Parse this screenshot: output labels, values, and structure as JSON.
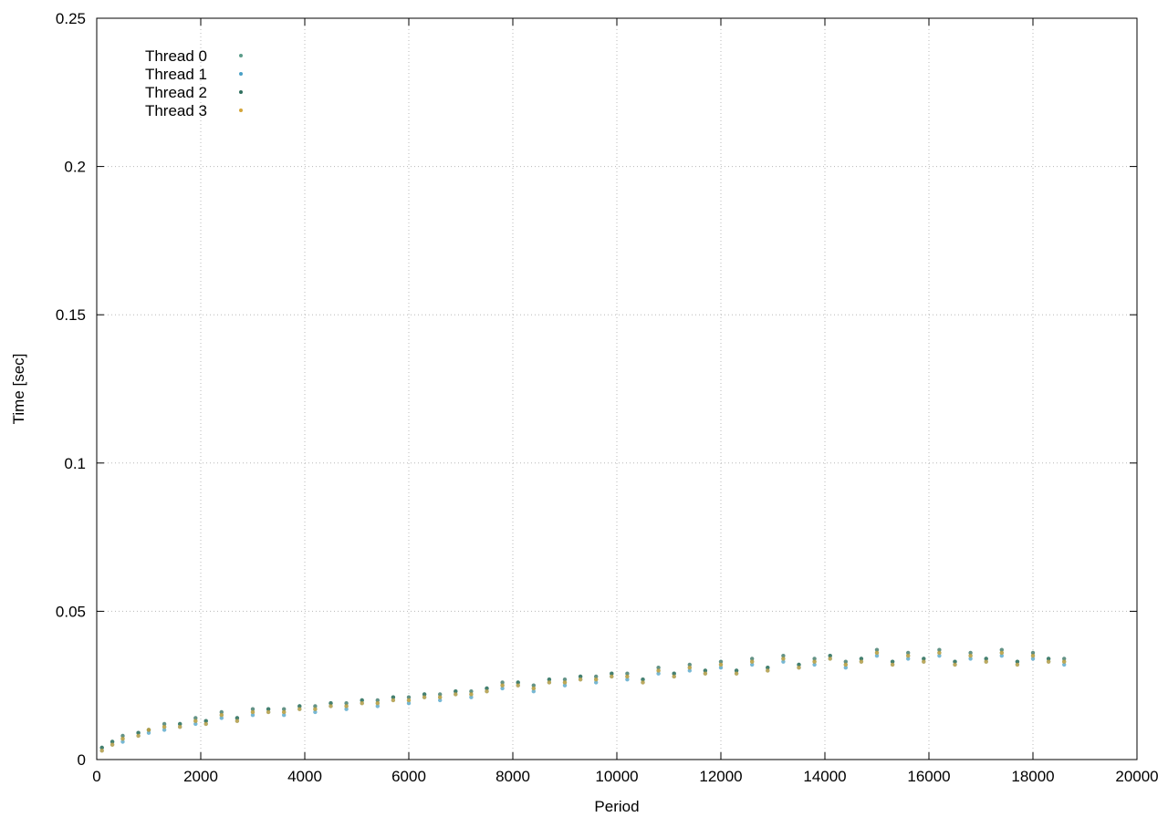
{
  "chart_data": {
    "type": "scatter",
    "title": "",
    "xlabel": "Period",
    "ylabel": "Time [sec]",
    "xlim": [
      0,
      20000
    ],
    "ylim": [
      0,
      0.25
    ],
    "xticks": [
      0,
      2000,
      4000,
      6000,
      8000,
      10000,
      12000,
      14000,
      16000,
      18000,
      20000
    ],
    "yticks": [
      0,
      0.05,
      0.1,
      0.15,
      0.2,
      0.25
    ],
    "xtick_labels": [
      "0",
      "2000",
      "4000",
      "6000",
      "8000",
      "10000",
      "12000",
      "14000",
      "16000",
      "18000",
      "20000"
    ],
    "ytick_labels": [
      "0",
      "0.05",
      "0.1",
      "0.15",
      "0.2",
      "0.25"
    ],
    "grid": true,
    "legend_position": "top-left",
    "series": [
      {
        "name": "Thread 0",
        "color": "#5b9c8a",
        "x": [
          100,
          300,
          500,
          800,
          1000,
          1300,
          1600,
          1900,
          2100,
          2400,
          2700,
          3000,
          3300,
          3600,
          3900,
          4200,
          4500,
          4800,
          5100,
          5400,
          5700,
          6000,
          6300,
          6600,
          6900,
          7200,
          7500,
          7800,
          8100,
          8400,
          8700,
          9000,
          9300,
          9600,
          9900,
          10200,
          10500,
          10800,
          11100,
          11400,
          11700,
          12000,
          12300,
          12600,
          12900,
          13200,
          13500,
          13800,
          14100,
          14400,
          14700,
          15000,
          15300,
          15600,
          15900,
          16200,
          16500,
          16800,
          17100,
          17400,
          17700,
          18000,
          18300,
          18600
        ],
        "y": [
          0.004,
          0.006,
          0.007,
          0.009,
          0.01,
          0.011,
          0.012,
          0.013,
          0.013,
          0.015,
          0.014,
          0.016,
          0.017,
          0.016,
          0.018,
          0.017,
          0.019,
          0.018,
          0.02,
          0.019,
          0.021,
          0.02,
          0.022,
          0.021,
          0.023,
          0.022,
          0.024,
          0.025,
          0.026,
          0.024,
          0.027,
          0.026,
          0.028,
          0.027,
          0.029,
          0.028,
          0.027,
          0.03,
          0.029,
          0.031,
          0.03,
          0.032,
          0.03,
          0.033,
          0.031,
          0.034,
          0.032,
          0.033,
          0.035,
          0.032,
          0.034,
          0.036,
          0.033,
          0.035,
          0.034,
          0.036,
          0.033,
          0.035,
          0.034,
          0.036,
          0.033,
          0.035,
          0.034,
          0.033
        ]
      },
      {
        "name": "Thread 1",
        "color": "#4aa0c6",
        "x": [
          100,
          300,
          500,
          800,
          1000,
          1300,
          1600,
          1900,
          2100,
          2400,
          2700,
          3000,
          3300,
          3600,
          3900,
          4200,
          4500,
          4800,
          5100,
          5400,
          5700,
          6000,
          6300,
          6600,
          6900,
          7200,
          7500,
          7800,
          8100,
          8400,
          8700,
          9000,
          9300,
          9600,
          9900,
          10200,
          10500,
          10800,
          11100,
          11400,
          11700,
          12000,
          12300,
          12600,
          12900,
          13200,
          13500,
          13800,
          14100,
          14400,
          14700,
          15000,
          15300,
          15600,
          15900,
          16200,
          16500,
          16800,
          17100,
          17400,
          17700,
          18000,
          18300,
          18600
        ],
        "y": [
          0.003,
          0.005,
          0.006,
          0.008,
          0.009,
          0.01,
          0.011,
          0.012,
          0.012,
          0.014,
          0.013,
          0.015,
          0.016,
          0.015,
          0.017,
          0.016,
          0.018,
          0.017,
          0.019,
          0.018,
          0.02,
          0.019,
          0.021,
          0.02,
          0.022,
          0.021,
          0.023,
          0.024,
          0.025,
          0.023,
          0.026,
          0.025,
          0.027,
          0.026,
          0.028,
          0.027,
          0.026,
          0.029,
          0.028,
          0.03,
          0.029,
          0.031,
          0.029,
          0.032,
          0.03,
          0.033,
          0.031,
          0.032,
          0.034,
          0.031,
          0.033,
          0.035,
          0.032,
          0.034,
          0.033,
          0.035,
          0.032,
          0.034,
          0.033,
          0.035,
          0.032,
          0.034,
          0.033,
          0.032
        ]
      },
      {
        "name": "Thread 2",
        "color": "#2f6f5e",
        "x": [
          100,
          300,
          500,
          800,
          1000,
          1300,
          1600,
          1900,
          2100,
          2400,
          2700,
          3000,
          3300,
          3600,
          3900,
          4200,
          4500,
          4800,
          5100,
          5400,
          5700,
          6000,
          6300,
          6600,
          6900,
          7200,
          7500,
          7800,
          8100,
          8400,
          8700,
          9000,
          9300,
          9600,
          9900,
          10200,
          10500,
          10800,
          11100,
          11400,
          11700,
          12000,
          12300,
          12600,
          12900,
          13200,
          13500,
          13800,
          14100,
          14400,
          14700,
          15000,
          15300,
          15600,
          15900,
          16200,
          16500,
          16800,
          17100,
          17400,
          17700,
          18000,
          18300,
          18600
        ],
        "y": [
          0.004,
          0.006,
          0.008,
          0.009,
          0.01,
          0.012,
          0.012,
          0.014,
          0.013,
          0.016,
          0.014,
          0.017,
          0.017,
          0.017,
          0.018,
          0.018,
          0.019,
          0.019,
          0.02,
          0.02,
          0.021,
          0.021,
          0.022,
          0.022,
          0.023,
          0.023,
          0.024,
          0.026,
          0.026,
          0.025,
          0.027,
          0.027,
          0.028,
          0.028,
          0.029,
          0.029,
          0.027,
          0.031,
          0.029,
          0.032,
          0.03,
          0.033,
          0.03,
          0.034,
          0.031,
          0.035,
          0.032,
          0.034,
          0.035,
          0.033,
          0.034,
          0.037,
          0.033,
          0.036,
          0.034,
          0.037,
          0.033,
          0.036,
          0.034,
          0.037,
          0.033,
          0.036,
          0.034,
          0.034
        ]
      },
      {
        "name": "Thread 3",
        "color": "#d4a63a",
        "x": [
          100,
          300,
          500,
          800,
          1000,
          1300,
          1600,
          1900,
          2100,
          2400,
          2700,
          3000,
          3300,
          3600,
          3900,
          4200,
          4500,
          4800,
          5100,
          5400,
          5700,
          6000,
          6300,
          6600,
          6900,
          7200,
          7500,
          7800,
          8100,
          8400,
          8700,
          9000,
          9300,
          9600,
          9900,
          10200,
          10500,
          10800,
          11100,
          11400,
          11700,
          12000,
          12300,
          12600,
          12900,
          13200,
          13500,
          13800,
          14100,
          14400,
          14700,
          15000,
          15300,
          15600,
          15900,
          16200,
          16500,
          16800,
          17100,
          17400,
          17700,
          18000,
          18300,
          18600
        ],
        "y": [
          0.003,
          0.005,
          0.007,
          0.008,
          0.01,
          0.011,
          0.011,
          0.013,
          0.012,
          0.015,
          0.013,
          0.016,
          0.016,
          0.016,
          0.017,
          0.017,
          0.018,
          0.018,
          0.019,
          0.019,
          0.02,
          0.02,
          0.021,
          0.021,
          0.022,
          0.022,
          0.023,
          0.025,
          0.025,
          0.024,
          0.026,
          0.026,
          0.027,
          0.027,
          0.028,
          0.028,
          0.026,
          0.03,
          0.028,
          0.031,
          0.029,
          0.032,
          0.029,
          0.033,
          0.03,
          0.034,
          0.031,
          0.033,
          0.034,
          0.032,
          0.033,
          0.036,
          0.032,
          0.035,
          0.033,
          0.036,
          0.032,
          0.035,
          0.033,
          0.036,
          0.032,
          0.035,
          0.033,
          0.033
        ]
      }
    ]
  }
}
